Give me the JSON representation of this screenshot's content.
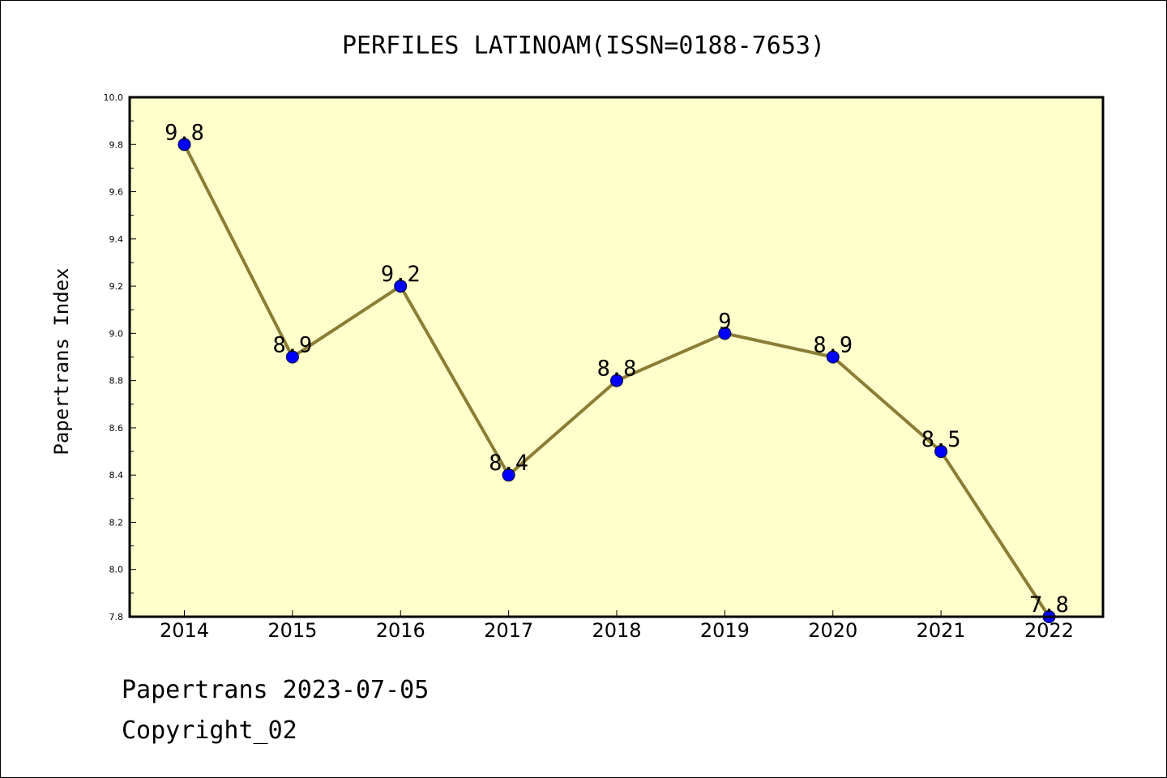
{
  "chart_data": {
    "type": "line",
    "title": "PERFILES LATINOAM(ISSN=0188-7653)",
    "xlabel": "",
    "ylabel": "Papertrans Index",
    "categories": [
      "2014",
      "2015",
      "2016",
      "2017",
      "2018",
      "2019",
      "2020",
      "2021",
      "2022"
    ],
    "series": [
      {
        "values": [
          9.8,
          8.9,
          9.2,
          8.4,
          8.8,
          9.0,
          8.9,
          8.5,
          7.8
        ],
        "data_labels": [
          "9.8",
          "8.9",
          "9.2",
          "8.4",
          "8.8",
          "9",
          "8.9",
          "8.5",
          "7.8"
        ]
      }
    ],
    "ylim": [
      7.8,
      10.0
    ],
    "yticks": [
      "7.8",
      "8.0",
      "8.2",
      "8.4",
      "8.6",
      "8.8",
      "9.0",
      "9.2",
      "9.4",
      "9.6",
      "9.8",
      "10.0"
    ],
    "grid": false,
    "legend": "none",
    "colors": {
      "plot_background": "#ffffcc",
      "line": "#8b7d35",
      "marker": "#0000ff"
    }
  },
  "footer": {
    "line1": "Papertrans 2023-07-05",
    "line2": "Copyright_02"
  }
}
